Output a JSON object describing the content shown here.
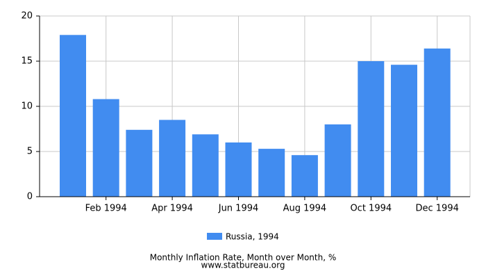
{
  "chart_data": {
    "type": "bar",
    "title": "Monthly Inflation Rate, Month over Month, %",
    "subtitle": "www.statbureau.org",
    "categories": [
      null,
      "Feb 1994",
      null,
      "Apr 1994",
      null,
      "Jun 1994",
      null,
      "Aug 1994",
      null,
      "Oct 1994",
      null,
      "Dec 1994"
    ],
    "series": [
      {
        "name": "Russia, 1994",
        "color": "#418cf0",
        "values": [
          17.9,
          10.8,
          7.4,
          8.5,
          6.9,
          6.0,
          5.3,
          4.6,
          8.0,
          15.0,
          14.6,
          16.4
        ]
      }
    ],
    "ylim": [
      0,
      20
    ],
    "yticks": [
      0,
      5,
      10,
      15,
      20
    ],
    "grid": true,
    "legend": "bottom"
  }
}
